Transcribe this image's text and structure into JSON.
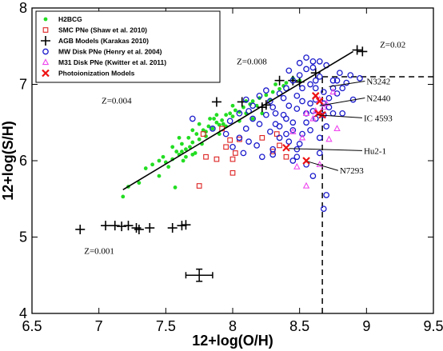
{
  "chart_data": {
    "type": "scatter",
    "xlabel": "12+log(O/H)",
    "ylabel": "12+log(S/H)",
    "xlim": [
      6.5,
      9.5
    ],
    "ylim": [
      4,
      8
    ],
    "xticks": [
      6.5,
      7,
      7.5,
      8,
      8.5,
      9,
      9.5
    ],
    "yticks": [
      4,
      5,
      6,
      7,
      8
    ],
    "legend_position": "top-left",
    "legend": [
      {
        "label": "H2BCG",
        "marker": "dot",
        "color": "#22dd22"
      },
      {
        "label": "SMC PNe (Shaw et al. 2010)",
        "marker": "square",
        "color": "#dd2222"
      },
      {
        "label": "AGB Models (Karakas 2010)",
        "marker": "plus",
        "color": "#000000"
      },
      {
        "label": "MW Disk PNe (Henry et al. 2004)",
        "marker": "circle",
        "color": "#1a1acc"
      },
      {
        "label": "M31 Disk PNe (Kwitter et al. 2011)",
        "marker": "triangle",
        "color": "#ee44ee"
      },
      {
        "label": "Photoionization Models",
        "marker": "cross",
        "color": "#ee1111"
      }
    ],
    "series": [
      {
        "marker": "dot",
        "color": "#22dd22",
        "points": [
          [
            7.18,
            5.53
          ],
          [
            7.22,
            5.66
          ],
          [
            7.3,
            5.71
          ],
          [
            7.45,
            5.8
          ],
          [
            7.52,
            5.92
          ],
          [
            7.5,
            5.98
          ],
          [
            7.55,
            6.02
          ],
          [
            7.6,
            6.08
          ],
          [
            7.58,
            6.12
          ],
          [
            7.63,
            6.0
          ],
          [
            7.65,
            6.15
          ],
          [
            7.62,
            6.22
          ],
          [
            7.68,
            6.18
          ],
          [
            7.7,
            6.24
          ],
          [
            7.67,
            6.3
          ],
          [
            7.72,
            6.1
          ],
          [
            7.75,
            6.28
          ],
          [
            7.73,
            6.35
          ],
          [
            7.78,
            6.4
          ],
          [
            7.8,
            6.32
          ],
          [
            7.82,
            6.45
          ],
          [
            7.8,
            6.38
          ],
          [
            7.85,
            6.42
          ],
          [
            7.88,
            6.5
          ],
          [
            7.86,
            6.55
          ],
          [
            7.9,
            6.47
          ],
          [
            7.92,
            6.53
          ],
          [
            7.95,
            6.6
          ],
          [
            7.93,
            6.48
          ],
          [
            7.98,
            6.62
          ],
          [
            8.0,
            6.58
          ],
          [
            8.02,
            6.66
          ],
          [
            8.05,
            6.64
          ],
          [
            8.08,
            6.7
          ],
          [
            8.1,
            6.62
          ],
          [
            8.13,
            6.74
          ],
          [
            8.15,
            6.78
          ],
          [
            8.18,
            6.72
          ],
          [
            8.2,
            6.82
          ],
          [
            8.25,
            6.86
          ],
          [
            8.28,
            6.8
          ],
          [
            8.3,
            6.9
          ],
          [
            8.35,
            6.94
          ],
          [
            8.38,
            6.98
          ],
          [
            8.4,
            7.02
          ],
          [
            8.45,
            7.08
          ],
          [
            8.5,
            7.05
          ],
          [
            8.32,
            7.0
          ],
          [
            7.6,
            6.3
          ],
          [
            7.7,
            6.4
          ],
          [
            7.4,
            5.95
          ],
          [
            7.35,
            5.9
          ],
          [
            7.48,
            6.05
          ],
          [
            7.55,
            6.18
          ],
          [
            7.75,
            6.48
          ],
          [
            7.95,
            6.45
          ],
          [
            8.05,
            6.52
          ],
          [
            7.65,
            6.05
          ],
          [
            7.57,
            5.65
          ],
          [
            7.9,
            6.35
          ],
          [
            8.15,
            6.55
          ],
          [
            8.22,
            6.62
          ],
          [
            7.83,
            6.55
          ],
          [
            8.0,
            6.72
          ],
          [
            7.45,
            6.0
          ],
          [
            7.77,
            6.22
          ],
          [
            7.62,
            6.12
          ],
          [
            7.7,
            6.08
          ],
          [
            7.88,
            6.6
          ],
          [
            8.1,
            6.78
          ]
        ]
      },
      {
        "marker": "square",
        "color": "#dd2222",
        "points": [
          [
            7.75,
            5.67
          ],
          [
            7.8,
            6.05
          ],
          [
            7.88,
            6.02
          ],
          [
            7.95,
            6.18
          ],
          [
            7.98,
            6.27
          ],
          [
            8.0,
            5.84
          ],
          [
            8.02,
            6.1
          ],
          [
            8.05,
            6.28
          ],
          [
            8.0,
            6.02
          ],
          [
            8.22,
            6.3
          ],
          [
            8.3,
            6.12
          ],
          [
            8.33,
            6.35
          ],
          [
            8.35,
            6.2
          ],
          [
            8.4,
            6.05
          ],
          [
            7.92,
            6.42
          ],
          [
            7.78,
            6.35
          ]
        ]
      },
      {
        "marker": "plus",
        "color": "#000000",
        "points": [
          [
            6.86,
            5.1
          ],
          [
            7.05,
            5.15
          ],
          [
            7.12,
            5.15
          ],
          [
            7.17,
            5.14
          ],
          [
            7.22,
            5.15
          ],
          [
            7.28,
            5.12
          ],
          [
            7.3,
            5.1
          ],
          [
            7.38,
            5.12
          ],
          [
            7.55,
            5.12
          ],
          [
            7.62,
            5.15
          ],
          [
            7.65,
            5.16
          ],
          [
            7.88,
            6.77
          ],
          [
            8.07,
            6.77
          ],
          [
            8.25,
            6.73
          ],
          [
            8.22,
            6.7
          ],
          [
            8.35,
            7.05
          ],
          [
            8.45,
            7.05
          ],
          [
            8.5,
            7.03
          ],
          [
            8.62,
            7.15
          ],
          [
            8.93,
            7.45
          ],
          [
            8.97,
            7.43
          ]
        ]
      },
      {
        "marker": "circle",
        "color": "#1a1acc",
        "points": [
          [
            7.7,
            6.55
          ],
          [
            7.85,
            6.42
          ],
          [
            7.95,
            6.35
          ],
          [
            8.0,
            6.18
          ],
          [
            8.05,
            6.3
          ],
          [
            8.08,
            6.1
          ],
          [
            8.1,
            6.42
          ],
          [
            8.12,
            6.25
          ],
          [
            8.15,
            6.55
          ],
          [
            8.18,
            6.2
          ],
          [
            8.2,
            6.48
          ],
          [
            8.22,
            6.05
          ],
          [
            8.25,
            6.6
          ],
          [
            8.28,
            6.38
          ],
          [
            8.3,
            6.7
          ],
          [
            8.32,
            6.48
          ],
          [
            8.35,
            6.88
          ],
          [
            8.38,
            6.6
          ],
          [
            8.4,
            6.95
          ],
          [
            8.42,
            6.72
          ],
          [
            8.45,
            7.05
          ],
          [
            8.48,
            6.85
          ],
          [
            8.5,
            7.12
          ],
          [
            8.52,
            6.95
          ],
          [
            8.55,
            7.2
          ],
          [
            8.58,
            7.0
          ],
          [
            8.6,
            7.3
          ],
          [
            8.62,
            6.8
          ],
          [
            8.65,
            7.1
          ],
          [
            8.68,
            6.9
          ],
          [
            8.7,
            7.25
          ],
          [
            8.72,
            6.7
          ],
          [
            8.75,
            7.05
          ],
          [
            8.78,
            6.88
          ],
          [
            8.8,
            7.15
          ],
          [
            8.82,
            6.95
          ],
          [
            8.85,
            7.02
          ],
          [
            8.88,
            7.12
          ],
          [
            8.9,
            6.8
          ],
          [
            8.95,
            7.08
          ],
          [
            8.4,
            6.35
          ],
          [
            8.45,
            6.5
          ],
          [
            8.5,
            6.22
          ],
          [
            8.55,
            6.62
          ],
          [
            8.58,
            6.4
          ],
          [
            8.62,
            6.55
          ],
          [
            8.65,
            6.3
          ],
          [
            8.68,
            6.6
          ],
          [
            8.7,
            6.45
          ],
          [
            8.75,
            6.62
          ],
          [
            8.52,
            6.35
          ],
          [
            8.48,
            6.15
          ],
          [
            8.45,
            6.0
          ],
          [
            8.55,
            5.95
          ],
          [
            8.6,
            5.8
          ],
          [
            8.65,
            6.1
          ],
          [
            8.7,
            5.55
          ],
          [
            8.68,
            5.37
          ],
          [
            8.35,
            6.3
          ],
          [
            8.3,
            6.15
          ],
          [
            8.25,
            6.92
          ],
          [
            8.15,
            6.72
          ],
          [
            8.1,
            6.8
          ],
          [
            8.2,
            6.85
          ],
          [
            8.55,
            7.35
          ],
          [
            8.6,
            7.22
          ],
          [
            8.5,
            7.28
          ],
          [
            8.65,
            7.3
          ],
          [
            8.42,
            7.18
          ],
          [
            8.48,
            6.68
          ],
          [
            8.58,
            6.75
          ],
          [
            8.62,
            6.95
          ],
          [
            8.72,
            6.82
          ],
          [
            8.78,
            7.05
          ],
          [
            8.82,
            6.62
          ],
          [
            8.35,
            6.45
          ],
          [
            8.4,
            6.55
          ],
          [
            8.45,
            6.4
          ],
          [
            8.05,
            6.62
          ],
          [
            7.98,
            6.52
          ],
          [
            8.12,
            6.65
          ],
          [
            8.28,
            6.78
          ],
          [
            8.32,
            6.62
          ],
          [
            8.38,
            6.82
          ],
          [
            8.52,
            6.78
          ],
          [
            8.55,
            6.5
          ],
          [
            8.6,
            6.65
          ],
          [
            8.62,
            7.05
          ],
          [
            8.68,
            6.75
          ],
          [
            8.75,
            6.95
          ],
          [
            8.3,
            6.08
          ],
          [
            8.42,
            6.25
          ],
          [
            8.48,
            6.05
          ]
        ]
      },
      {
        "marker": "triangle",
        "color": "#ee44ee",
        "points": [
          [
            8.48,
            5.92
          ],
          [
            8.55,
            5.67
          ],
          [
            8.65,
            5.95
          ],
          [
            8.72,
            6.28
          ],
          [
            8.78,
            6.42
          ],
          [
            8.62,
            6.65
          ],
          [
            8.68,
            6.7
          ],
          [
            8.6,
            6.55
          ],
          [
            8.55,
            6.62
          ],
          [
            8.65,
            6.8
          ],
          [
            8.75,
            6.9
          ],
          [
            8.7,
            6.75
          ],
          [
            8.45,
            6.38
          ],
          [
            8.52,
            6.3
          ]
        ]
      },
      {
        "marker": "cross",
        "color": "#ee1111",
        "points": [
          [
            8.4,
            6.17
          ],
          [
            8.55,
            6.0
          ],
          [
            8.62,
            6.85
          ],
          [
            8.65,
            6.78
          ],
          [
            8.67,
            6.6
          ],
          [
            8.64,
            6.62
          ]
        ]
      }
    ],
    "fit_line": {
      "from": [
        7.18,
        5.62
      ],
      "to": [
        8.9,
        7.43
      ]
    },
    "dashed_lines": [
      {
        "from": [
          8.67,
          7.1
        ],
        "to": [
          9.5,
          7.1
        ]
      },
      {
        "from": [
          8.67,
          4.0
        ],
        "to": [
          8.67,
          7.1
        ]
      }
    ],
    "error_bar": {
      "x": 7.75,
      "y": 4.5,
      "xerr": 0.1,
      "yerr": 0.08
    },
    "annotations": [
      {
        "text": "Z=0.02",
        "x": 9.1,
        "y": 7.48,
        "pointer": null
      },
      {
        "text": "Z=0.008",
        "x": 8.03,
        "y": 7.26,
        "pointer": null
      },
      {
        "text": "Z=0.004",
        "x": 7.02,
        "y": 6.75,
        "pointer": null
      },
      {
        "text": "Z=0.001",
        "x": 6.89,
        "y": 4.78,
        "pointer": null
      },
      {
        "text": "N3242",
        "x": 9.0,
        "y": 7.0,
        "pointer": [
          8.72,
          6.97
        ]
      },
      {
        "text": "N2440",
        "x": 9.0,
        "y": 6.78,
        "pointer": [
          8.65,
          6.72
        ]
      },
      {
        "text": "IC 4593",
        "x": 8.98,
        "y": 6.52,
        "pointer": [
          8.63,
          6.6
        ]
      },
      {
        "text": "Hu2-1",
        "x": 8.98,
        "y": 6.09,
        "pointer": [
          8.42,
          6.16
        ]
      },
      {
        "text": "N7293",
        "x": 8.8,
        "y": 5.83,
        "pointer": [
          8.56,
          5.99
        ]
      }
    ]
  }
}
